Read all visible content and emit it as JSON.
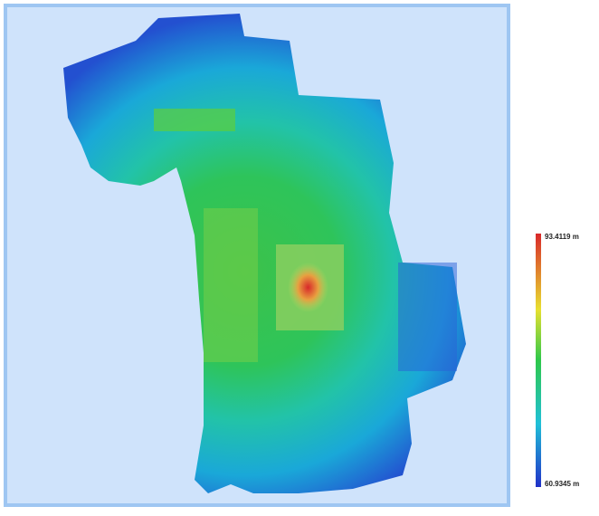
{
  "legend": {
    "max_label": "93.4119 m",
    "min_label": "60.9345 m"
  }
}
